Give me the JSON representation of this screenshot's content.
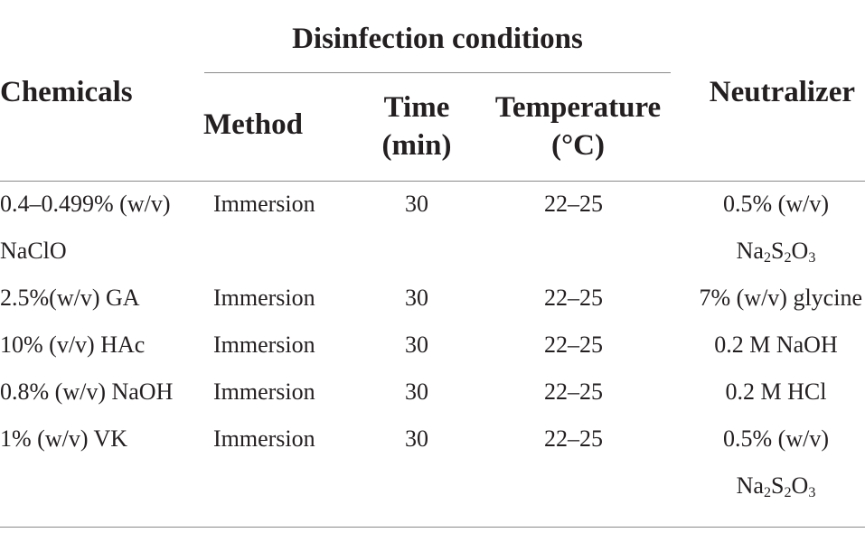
{
  "table": {
    "headers": {
      "chemicals": "Chemicals",
      "group": "Disinfection conditions",
      "method": "Method",
      "time_line1": "Time",
      "time_line2": "(min)",
      "temp_line1": "Temperature",
      "temp_line2": "(°C)",
      "neutralizer": "Neutralizer"
    },
    "rows": [
      {
        "chemical": "0.4–0.499% (w/v)",
        "chemical_cont": "NaClO",
        "method": "Immersion",
        "time": "30",
        "temperature": "22–25",
        "neutralizer": "0.5% (w/v)",
        "neutralizer_cont": "Na2S2O3"
      },
      {
        "chemical": "2.5%(w/v) GA",
        "method": "Immersion",
        "time": "30",
        "temperature": "22–25",
        "neutralizer": "7% (w/v) glycine"
      },
      {
        "chemical": "10% (v/v) HAc",
        "method": "Immersion",
        "time": "30",
        "temperature": "22–25",
        "neutralizer": "0.2 M NaOH"
      },
      {
        "chemical": "0.8% (w/v) NaOH",
        "method": "Immersion",
        "time": "30",
        "temperature": "22–25",
        "neutralizer": "0.2 M HCl"
      },
      {
        "chemical": "1% (w/v) VK",
        "method": "Immersion",
        "time": "30",
        "temperature": "22–25",
        "neutralizer": "0.5% (w/v)",
        "neutralizer_cont": "Na2S2O3"
      }
    ]
  }
}
